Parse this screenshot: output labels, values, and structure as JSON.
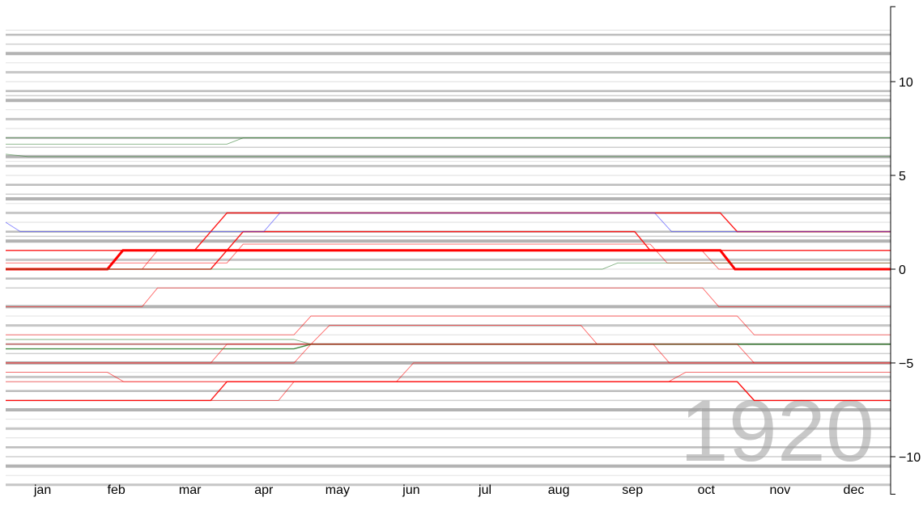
{
  "chart_data": {
    "type": "line",
    "annotation": "1920",
    "xlabel": "",
    "ylabel": "",
    "x_tick_labels": [
      "jan",
      "feb",
      "mar",
      "apr",
      "may",
      "jun",
      "jul",
      "aug",
      "sep",
      "oct",
      "nov",
      "dec"
    ],
    "xlim": [
      0,
      12
    ],
    "ylim": [
      -12,
      14
    ],
    "y_ticks": [
      10,
      5,
      0,
      -5,
      -10
    ],
    "y_tick_labels": [
      "10",
      "5",
      "0",
      "−5",
      "−10"
    ],
    "axis_position": "right",
    "grid": false,
    "background_offsets": [
      12.75,
      12.5,
      12,
      11.5,
      11,
      10.5,
      10,
      9.5,
      9.25,
      9,
      8.5,
      8,
      7.5,
      7,
      6.5,
      6,
      5.75,
      5.5,
      5,
      4.5,
      4,
      3.75,
      3.5,
      3,
      2.5,
      2,
      1.75,
      1.5,
      1,
      0.5,
      0,
      -0.5,
      -1,
      -2,
      -2.5,
      -3,
      -3.5,
      -4,
      -4.5,
      -5,
      -5.5,
      -5.75,
      -6,
      -6.5,
      -7,
      -7.5,
      -8,
      -8.5,
      -9,
      -9.5,
      -10,
      -10.5,
      -11,
      -11.5
    ],
    "colors": {
      "dst": "#ff0000",
      "other": "#2e7d2e",
      "blue": "#3333ff",
      "background": "#a0a0a0",
      "year": "#c8c8c8"
    },
    "series": [
      {
        "color": "#ff0000",
        "weight": "heavy",
        "points": [
          [
            0,
            0
          ],
          [
            1.38,
            0
          ],
          [
            1.59,
            1
          ],
          [
            9.69,
            1
          ],
          [
            9.89,
            0
          ],
          [
            12,
            0
          ]
        ]
      },
      {
        "color": "#ff0000",
        "weight": "medium",
        "points": [
          [
            0,
            1
          ],
          [
            2.56,
            1
          ],
          [
            3.0,
            3
          ],
          [
            9.69,
            3
          ],
          [
            9.92,
            2
          ],
          [
            12,
            2
          ]
        ]
      },
      {
        "color": "#ff0000",
        "weight": "medium",
        "points": [
          [
            0,
            0
          ],
          [
            2.78,
            0
          ],
          [
            3.22,
            2
          ],
          [
            8.53,
            2
          ],
          [
            8.74,
            1
          ],
          [
            12,
            1
          ]
        ]
      },
      {
        "color": "#ff0000",
        "weight": "light",
        "points": [
          [
            0,
            0.33
          ],
          [
            3.0,
            0.33
          ],
          [
            3.22,
            1.33
          ],
          [
            8.74,
            1.33
          ],
          [
            8.97,
            0.33
          ],
          [
            12,
            0.33
          ]
        ]
      },
      {
        "color": "#ff0000",
        "weight": "light",
        "points": [
          [
            0,
            0
          ],
          [
            1.85,
            0
          ],
          [
            2.06,
            1
          ],
          [
            9.44,
            1
          ],
          [
            9.67,
            0
          ],
          [
            12,
            0
          ]
        ]
      },
      {
        "color": "#3333ff",
        "weight": "light",
        "points": [
          [
            0,
            2.5
          ],
          [
            0.2,
            2
          ],
          [
            3.5,
            2
          ],
          [
            3.72,
            3
          ],
          [
            8.8,
            3
          ],
          [
            9.03,
            2
          ],
          [
            12,
            2
          ]
        ]
      },
      {
        "color": "#2e7d2e",
        "weight": "light",
        "points": [
          [
            0,
            0
          ],
          [
            8.09,
            0
          ],
          [
            8.3,
            0.33
          ],
          [
            12,
            0.33
          ]
        ]
      },
      {
        "color": "#2e7d2e",
        "weight": "light",
        "points": [
          [
            0,
            6.67
          ],
          [
            3.0,
            6.67
          ],
          [
            3.22,
            7
          ],
          [
            12,
            7
          ]
        ]
      },
      {
        "color": "#2e7d2e",
        "weight": "light",
        "points": [
          [
            0,
            7
          ],
          [
            12,
            7
          ]
        ]
      },
      {
        "color": "#2e7d2e",
        "weight": "light",
        "points": [
          [
            0,
            6.13
          ],
          [
            0.3,
            6
          ],
          [
            12,
            6
          ]
        ]
      },
      {
        "color": "#ff0000",
        "weight": "light",
        "points": [
          [
            0,
            -2
          ],
          [
            1.85,
            -2
          ],
          [
            2.06,
            -1
          ],
          [
            9.45,
            -1
          ],
          [
            9.67,
            -2
          ],
          [
            12,
            -2
          ]
        ]
      },
      {
        "color": "#ff0000",
        "weight": "light",
        "points": [
          [
            0,
            -3.5
          ],
          [
            3.91,
            -3.5
          ],
          [
            4.14,
            -2.5
          ],
          [
            9.92,
            -2.5
          ],
          [
            10.15,
            -3.5
          ],
          [
            12,
            -3.5
          ]
        ]
      },
      {
        "color": "#ff0000",
        "weight": "light",
        "points": [
          [
            0,
            -4
          ],
          [
            4.14,
            -4
          ],
          [
            4.39,
            -3
          ],
          [
            7.8,
            -3
          ],
          [
            8.02,
            -4
          ],
          [
            12,
            -4
          ]
        ]
      },
      {
        "color": "#2e7d2e",
        "weight": "light",
        "points": [
          [
            0,
            -3.75
          ],
          [
            3.91,
            -3.75
          ],
          [
            4.14,
            -4
          ],
          [
            12,
            -4
          ]
        ]
      },
      {
        "color": "#2e7d2e",
        "weight": "medium",
        "points": [
          [
            0,
            -4.25
          ],
          [
            3.91,
            -4.25
          ],
          [
            4.14,
            -4
          ],
          [
            12,
            -4
          ]
        ]
      },
      {
        "color": "#ff0000",
        "weight": "light",
        "points": [
          [
            0,
            -5
          ],
          [
            2.78,
            -5
          ],
          [
            3.0,
            -4
          ],
          [
            8.78,
            -4
          ],
          [
            9.0,
            -5
          ],
          [
            12,
            -5
          ]
        ]
      },
      {
        "color": "#ff0000",
        "weight": "light",
        "points": [
          [
            0,
            -5
          ],
          [
            3.91,
            -5
          ],
          [
            4.14,
            -4
          ],
          [
            9.92,
            -4
          ],
          [
            10.15,
            -5
          ],
          [
            12,
            -5
          ]
        ]
      },
      {
        "color": "#ff0000",
        "weight": "light",
        "points": [
          [
            0,
            -5.5
          ],
          [
            1.38,
            -5.5
          ],
          [
            1.6,
            -6
          ],
          [
            8.99,
            -6
          ],
          [
            9.22,
            -5.5
          ],
          [
            12,
            -5.5
          ]
        ]
      },
      {
        "color": "#ff0000",
        "weight": "light",
        "points": [
          [
            0,
            -6
          ],
          [
            5.3,
            -6
          ],
          [
            5.53,
            -5
          ],
          [
            12,
            -5
          ]
        ]
      },
      {
        "color": "#ff0000",
        "weight": "medium",
        "points": [
          [
            0,
            -7
          ],
          [
            2.78,
            -7
          ],
          [
            3.0,
            -6
          ],
          [
            9.92,
            -6
          ],
          [
            10.15,
            -7
          ],
          [
            12,
            -7
          ]
        ]
      },
      {
        "color": "#ff0000",
        "weight": "light",
        "points": [
          [
            0,
            -7
          ],
          [
            3.7,
            -7
          ],
          [
            3.91,
            -6
          ],
          [
            9.92,
            -6
          ],
          [
            10.15,
            -7
          ],
          [
            12,
            -7
          ]
        ]
      }
    ]
  }
}
